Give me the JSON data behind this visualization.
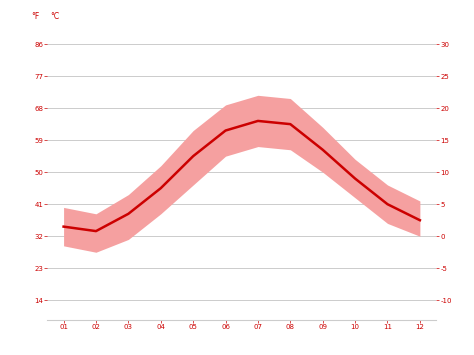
{
  "months": [
    1,
    2,
    3,
    4,
    5,
    6,
    7,
    8,
    9,
    10,
    11,
    12
  ],
  "month_labels": [
    "01",
    "02",
    "03",
    "04",
    "05",
    "06",
    "07",
    "08",
    "09",
    "10",
    "11",
    "12"
  ],
  "avg_temp_c": [
    1.5,
    0.8,
    3.5,
    7.5,
    12.5,
    16.5,
    18.0,
    17.5,
    13.5,
    9.0,
    5.0,
    2.5
  ],
  "max_temp_c": [
    4.5,
    3.5,
    6.5,
    11.0,
    16.5,
    20.5,
    22.0,
    21.5,
    17.0,
    12.0,
    8.0,
    5.5
  ],
  "min_temp_c": [
    -1.5,
    -2.5,
    -0.5,
    3.5,
    8.0,
    12.5,
    14.0,
    13.5,
    10.0,
    6.0,
    2.0,
    0.0
  ],
  "yticks_c": [
    -10,
    -5,
    0,
    5,
    10,
    15,
    20,
    25,
    30
  ],
  "yticks_f": [
    14,
    23,
    32,
    41,
    50,
    59,
    68,
    77,
    86
  ],
  "ylim_c": [
    -13,
    33
  ],
  "line_color": "#cc0000",
  "band_color": "#f5a0a0",
  "grid_color": "#cccccc",
  "label_color": "#cc0000",
  "bg_color": "#ffffff",
  "fig_width": 4.74,
  "fig_height": 3.55,
  "left_label": "°F",
  "right_label": "°C"
}
